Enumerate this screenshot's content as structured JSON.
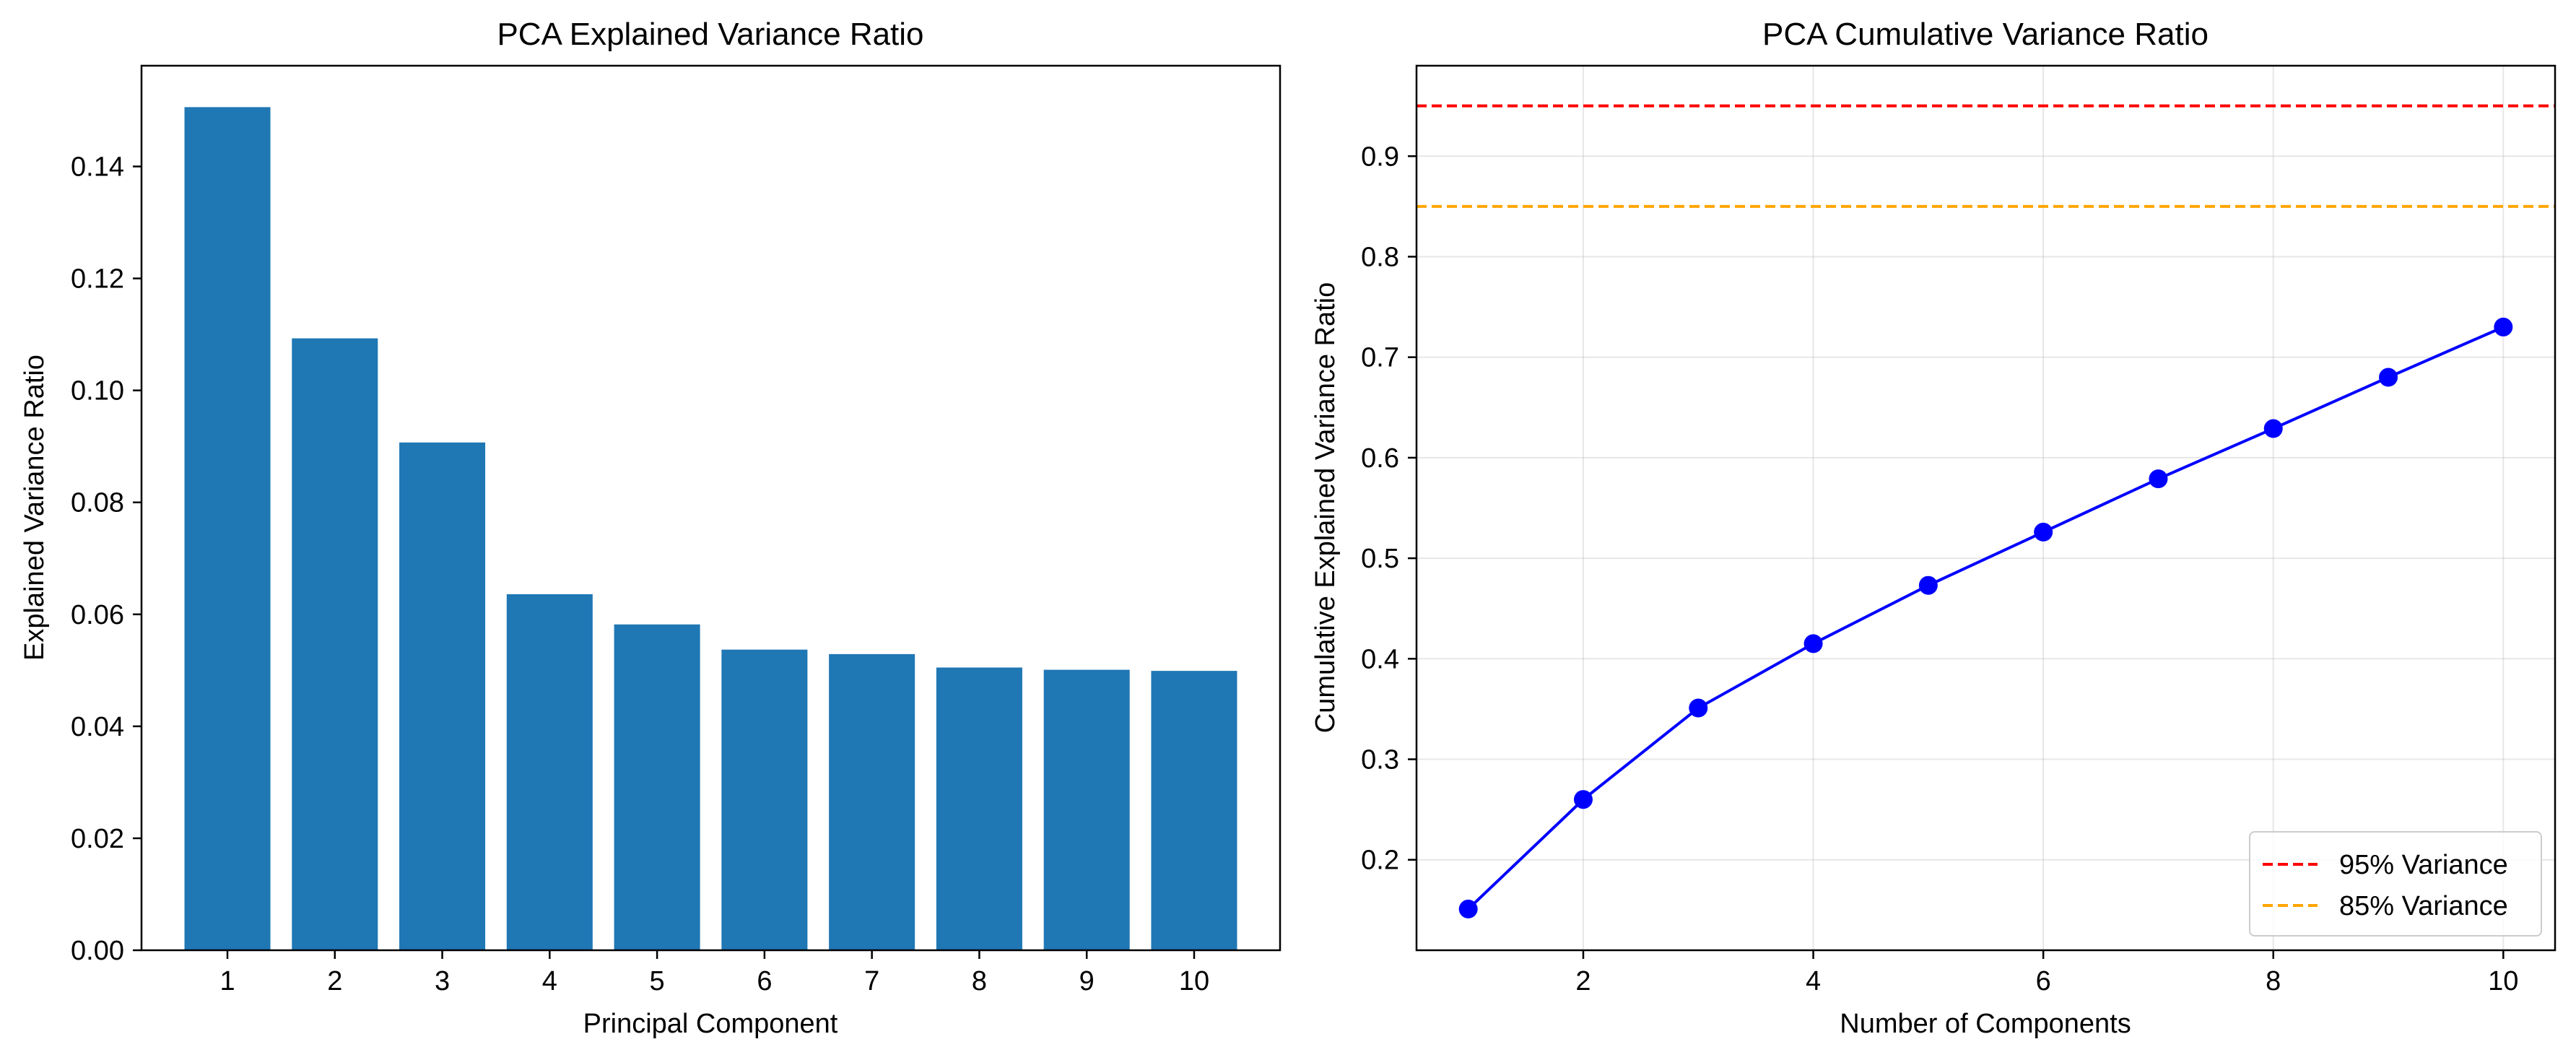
{
  "chart_data": [
    {
      "type": "bar",
      "title": "PCA Explained Variance Ratio",
      "xlabel": "Principal Component",
      "ylabel": "Explained Variance Ratio",
      "categories": [
        "1",
        "2",
        "3",
        "4",
        "5",
        "6",
        "7",
        "8",
        "9",
        "10"
      ],
      "values": [
        0.1506,
        0.1093,
        0.0907,
        0.0636,
        0.0582,
        0.0537,
        0.0529,
        0.0505,
        0.0501,
        0.0499
      ],
      "xticks": [
        "1",
        "2",
        "3",
        "4",
        "5",
        "6",
        "7",
        "8",
        "9",
        "10"
      ],
      "yticks": [
        0.0,
        0.02,
        0.04,
        0.06,
        0.08,
        0.1,
        0.12,
        0.14
      ],
      "ytick_labels": [
        "0.00",
        "0.02",
        "0.04",
        "0.06",
        "0.08",
        "0.10",
        "0.12",
        "0.14"
      ],
      "ylim": [
        0,
        0.158
      ],
      "xlim": [
        0.2,
        10.8
      ],
      "grid": false,
      "bar_color": "#1f77b4"
    },
    {
      "type": "line",
      "title": "PCA Cumulative Variance Ratio",
      "xlabel": "Number of Components",
      "ylabel": "Cumulative Explained Variance Ratio",
      "x": [
        1,
        2,
        3,
        4,
        5,
        6,
        7,
        8,
        9,
        10
      ],
      "series": [
        {
          "values": [
            0.151,
            0.26,
            0.351,
            0.415,
            0.473,
            0.526,
            0.579,
            0.629,
            0.68,
            0.73
          ],
          "color": "#0000ff",
          "marker": "circle"
        }
      ],
      "reference_lines": [
        {
          "y": 0.95,
          "name": "95% Variance",
          "color": "#ff0000",
          "style": "dashed"
        },
        {
          "y": 0.85,
          "name": "85% Variance",
          "color": "#ffa500",
          "style": "dashed"
        }
      ],
      "xticks": [
        2,
        4,
        6,
        8,
        10
      ],
      "xtick_labels": [
        "2",
        "4",
        "6",
        "8",
        "10"
      ],
      "yticks": [
        0.2,
        0.3,
        0.4,
        0.5,
        0.6,
        0.7,
        0.8,
        0.9
      ],
      "ytick_labels": [
        "0.2",
        "0.3",
        "0.4",
        "0.5",
        "0.6",
        "0.7",
        "0.8",
        "0.9"
      ],
      "xlim": [
        0.55,
        10.45
      ],
      "ylim": [
        0.11,
        0.99
      ],
      "grid": true,
      "legend_position": "lower-right"
    }
  ]
}
